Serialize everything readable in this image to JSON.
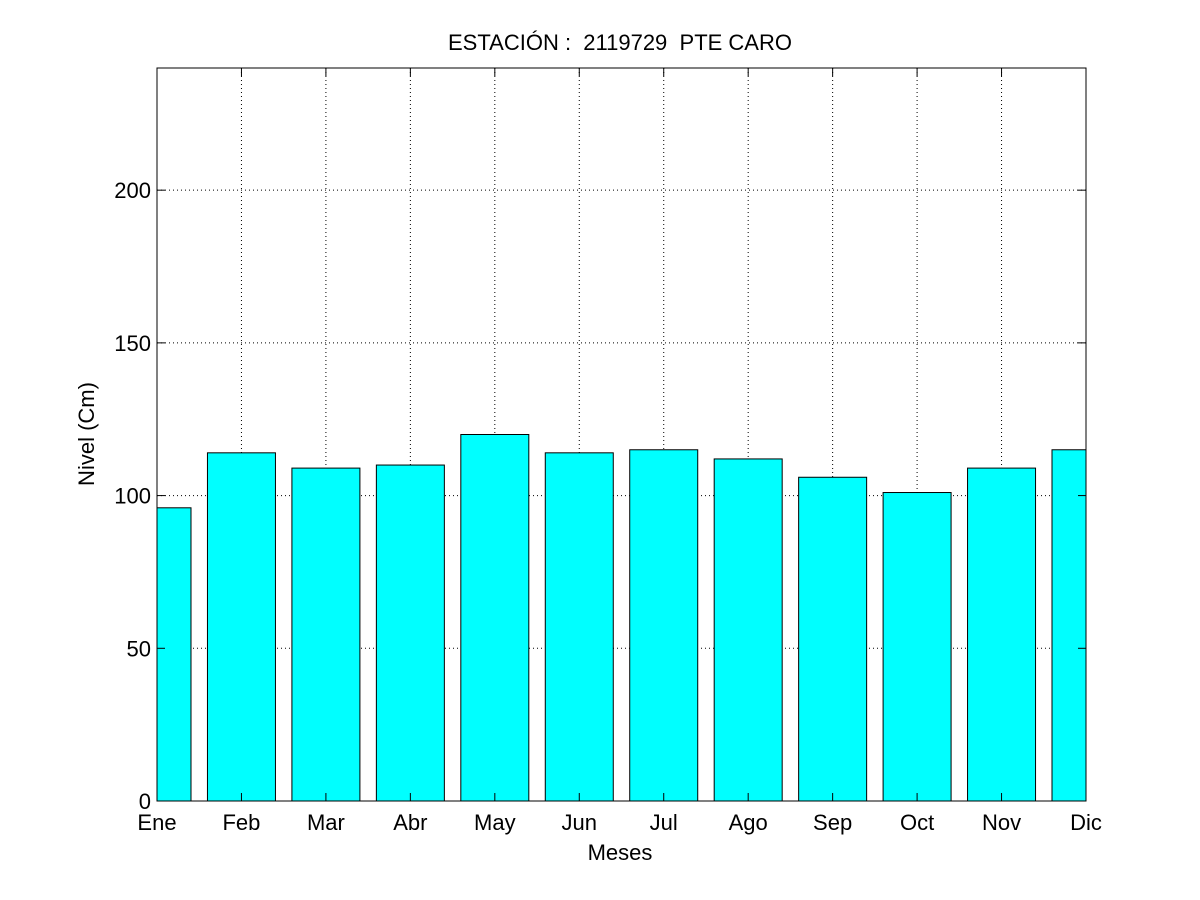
{
  "chart_data": {
    "type": "bar",
    "title": "ESTACIÓN :  2119729  PTE CARO",
    "xlabel": "Meses",
    "ylabel": "Nivel (Cm)",
    "categories": [
      "Ene",
      "Feb",
      "Mar",
      "Abr",
      "May",
      "Jun",
      "Jul",
      "Ago",
      "Sep",
      "Oct",
      "Nov",
      "Dic"
    ],
    "values": [
      96,
      114,
      109,
      110,
      120,
      114,
      115,
      112,
      106,
      101,
      109,
      115
    ],
    "ylim": [
      0,
      240
    ],
    "yticks": [
      0,
      50,
      100,
      150,
      200
    ],
    "grid": true,
    "bar_color": "#00ffff",
    "edge_color": "#000000"
  }
}
